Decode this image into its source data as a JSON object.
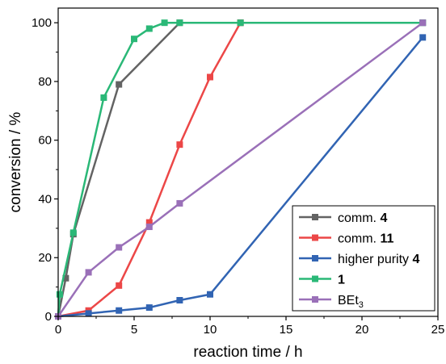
{
  "chart_data": {
    "type": "line",
    "xlabel": "reaction time / h",
    "ylabel": "conversion / %",
    "xlim": [
      0,
      25
    ],
    "ylim": [
      0,
      105
    ],
    "x_ticks": [
      0,
      5,
      10,
      15,
      20,
      25
    ],
    "y_ticks": [
      0,
      20,
      40,
      60,
      80,
      100
    ],
    "grid": false,
    "legend_position": "bottom-right",
    "series": [
      {
        "name": "comm. 4",
        "legend_parts": [
          {
            "text": "comm. ",
            "bold": false
          },
          {
            "text": "4",
            "bold": true
          }
        ],
        "color": "#636363",
        "x": [
          0,
          0.5,
          1,
          4,
          8,
          12,
          24
        ],
        "y": [
          0,
          13,
          28,
          79,
          100,
          100,
          100
        ]
      },
      {
        "name": "comm. 11",
        "legend_parts": [
          {
            "text": "comm. ",
            "bold": false
          },
          {
            "text": "11",
            "bold": true
          }
        ],
        "color": "#ec4747",
        "x": [
          0,
          2,
          4,
          6,
          8,
          10,
          12
        ],
        "y": [
          0,
          2,
          10.5,
          32,
          58.5,
          81.5,
          100
        ]
      },
      {
        "name": "higher purity 4",
        "legend_parts": [
          {
            "text": "higher purity ",
            "bold": false
          },
          {
            "text": "4",
            "bold": true
          }
        ],
        "color": "#3164b3",
        "x": [
          0,
          2,
          4,
          6,
          8,
          10,
          24
        ],
        "y": [
          0,
          1,
          2,
          3,
          5.5,
          7.5,
          95
        ]
      },
      {
        "name": "1",
        "legend_parts": [
          {
            "text": "1",
            "bold": true
          }
        ],
        "color": "#2ab877",
        "x": [
          0,
          0.1,
          1,
          3,
          5,
          6,
          7,
          8,
          12,
          24
        ],
        "y": [
          0,
          7.5,
          28.5,
          74.5,
          94.5,
          98,
          100,
          100,
          100,
          100
        ]
      },
      {
        "name": "BEt3",
        "legend_parts": [
          {
            "text": "BEt",
            "bold": false
          },
          {
            "text": "3",
            "bold": false,
            "sub": true
          }
        ],
        "color": "#9a70b8",
        "x": [
          0,
          2,
          4,
          6,
          8,
          24
        ],
        "y": [
          0,
          15,
          23.5,
          30.5,
          38.5,
          100
        ]
      }
    ]
  }
}
